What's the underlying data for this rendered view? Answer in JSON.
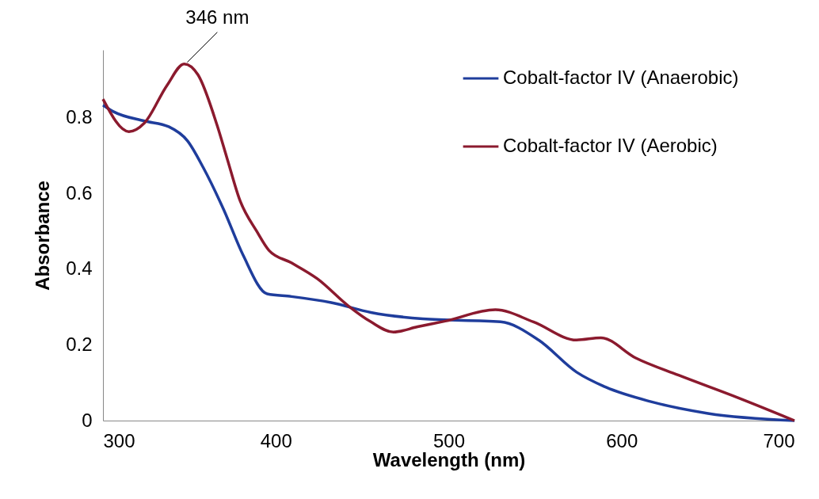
{
  "chart_data": {
    "type": "line",
    "xlabel": "Wavelength (nm)",
    "ylabel": "Absorbance",
    "xlim": [
      300,
      700
    ],
    "xticks": [
      300,
      400,
      500,
      600,
      700
    ],
    "ylim": [
      0,
      0.98
    ],
    "yticks": [
      0,
      0.2,
      0.4,
      0.6,
      0.8
    ],
    "grid": false,
    "legend": "top right",
    "marker": "none",
    "line_style": "solid",
    "annotations": [
      {
        "text": "346 nm",
        "x": 346,
        "y": 0.943
      }
    ],
    "series": [
      {
        "name": "Cobalt-factor IV (Anaerobic)",
        "color": "#1f3d9c",
        "x": [
          300,
          306,
          324,
          338,
          349,
          358,
          370,
          381,
          395,
          409,
          432,
          455,
          485,
          530,
          552,
          574,
          591,
          617,
          650,
          700
        ],
        "values": [
          0.834,
          0.817,
          0.792,
          0.777,
          0.739,
          0.669,
          0.556,
          0.438,
          0.335,
          0.328,
          0.312,
          0.286,
          0.269,
          0.261,
          0.213,
          0.128,
          0.088,
          0.05,
          0.019,
          0
        ]
      },
      {
        "name": "Cobalt-factor IV (Aerobic)",
        "color": "#8b1a2e",
        "x": [
          300,
          315,
          324,
          337,
          347,
          355,
          366,
          372,
          379,
          389,
          396,
          409,
          424,
          442,
          455,
          468,
          482,
          498,
          527,
          549,
          574,
          588,
          608,
          633,
          667,
          700
        ],
        "values": [
          0.85,
          0.764,
          0.787,
          0.886,
          0.943,
          0.914,
          0.781,
          0.69,
          0.585,
          0.5,
          0.45,
          0.417,
          0.375,
          0.303,
          0.261,
          0.234,
          0.248,
          0.263,
          0.293,
          0.261,
          0.213,
          0.219,
          0.166,
          0.12,
          0.061,
          0
        ]
      }
    ]
  }
}
